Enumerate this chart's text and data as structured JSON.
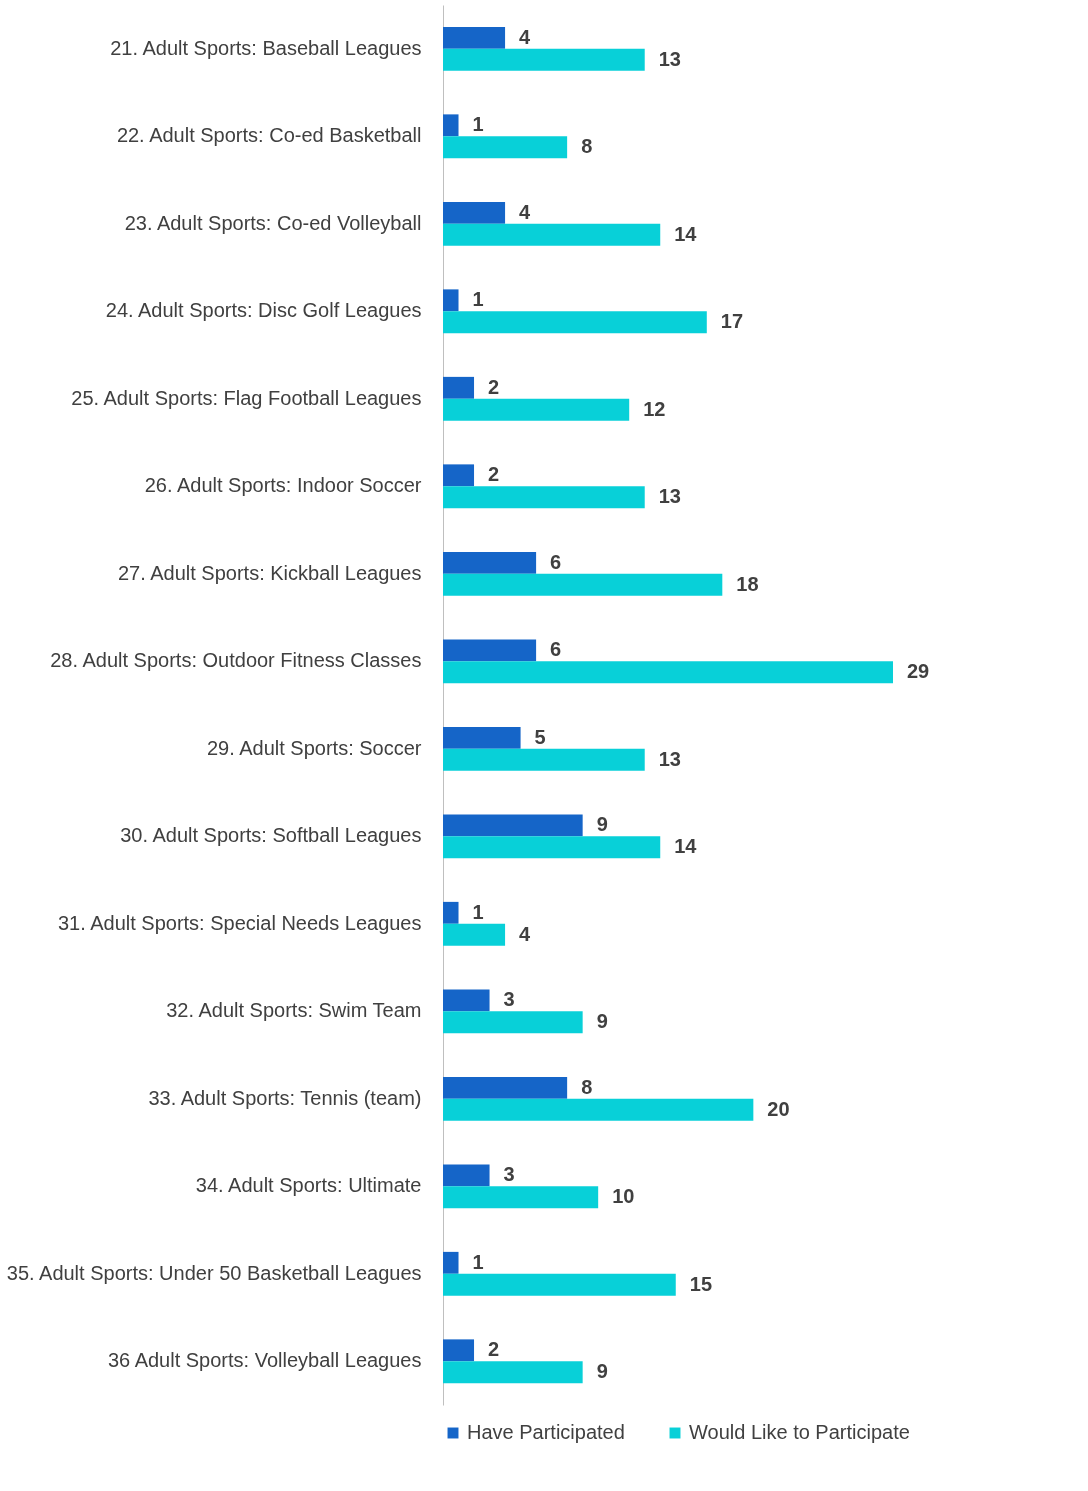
{
  "chart_data": {
    "type": "bar",
    "orientation": "horizontal",
    "data_labels": true,
    "legend": "bottom",
    "grid": false,
    "categories": [
      "21. Adult Sports: Baseball Leagues",
      "22. Adult Sports: Co-ed Basketball",
      "23. Adult Sports: Co-ed Volleyball",
      "24. Adult Sports: Disc Golf Leagues",
      "25. Adult Sports: Flag Football Leagues",
      "26. Adult Sports: Indoor Soccer",
      "27. Adult Sports: Kickball Leagues",
      "28. Adult Sports: Outdoor Fitness Classes",
      "29. Adult Sports: Soccer",
      "30. Adult Sports: Softball Leagues",
      "31. Adult Sports: Special Needs Leagues",
      "32. Adult Sports: Swim Team",
      "33. Adult Sports: Tennis (team)",
      "34. Adult Sports: Ultimate",
      "35. Adult Sports: Under 50 Basketball Leagues",
      "36 Adult Sports: Volleyball Leagues"
    ],
    "series": [
      {
        "name": "Have Participated",
        "color": "#1565c8",
        "values": [
          4,
          1,
          4,
          1,
          2,
          2,
          6,
          6,
          5,
          9,
          1,
          3,
          8,
          3,
          1,
          2
        ]
      },
      {
        "name": "Would Like to Participate",
        "color": "#08d0d8",
        "values": [
          13,
          8,
          14,
          17,
          12,
          13,
          18,
          29,
          13,
          14,
          4,
          9,
          20,
          10,
          15,
          9
        ]
      }
    ]
  }
}
